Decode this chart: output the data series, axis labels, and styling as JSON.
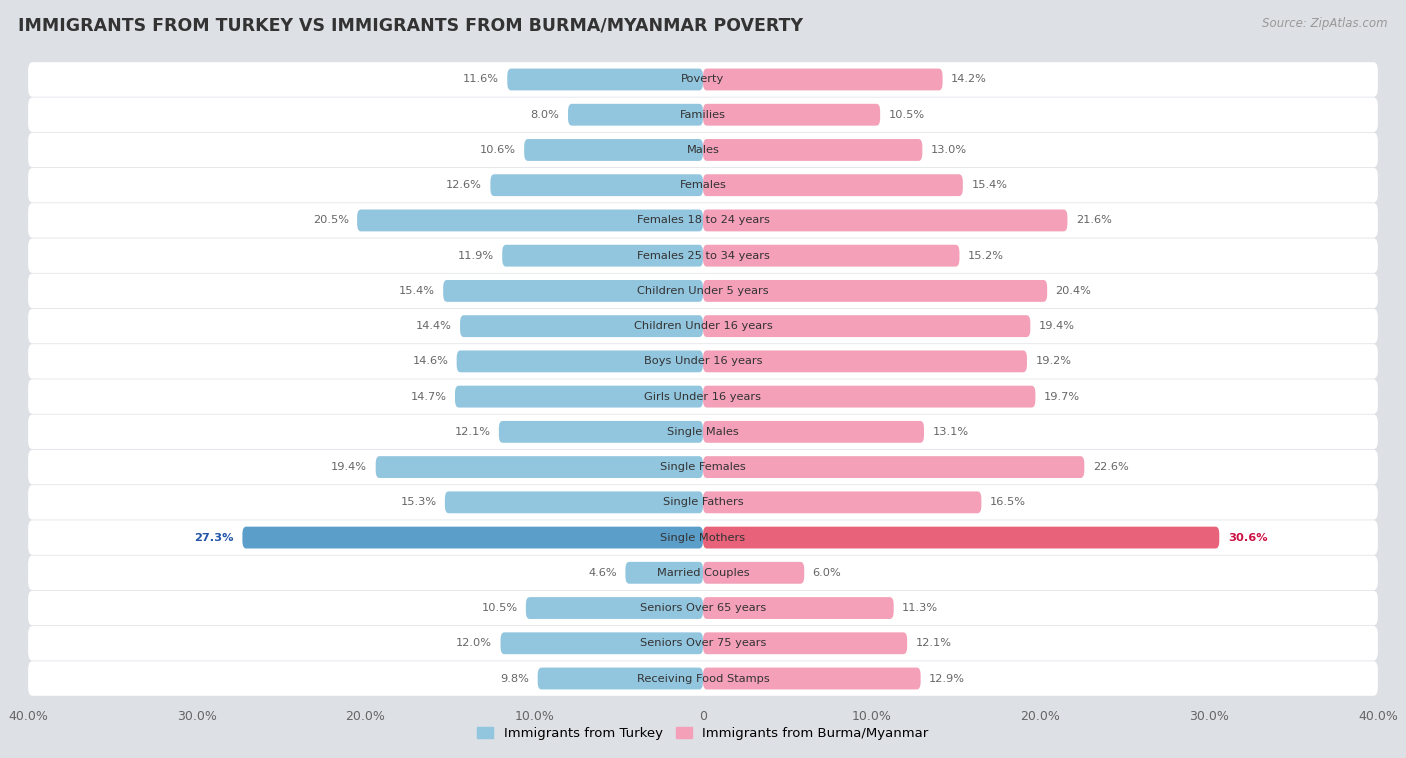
{
  "title": "IMMIGRANTS FROM TURKEY VS IMMIGRANTS FROM BURMA/MYANMAR POVERTY",
  "source": "Source: ZipAtlas.com",
  "categories": [
    "Poverty",
    "Families",
    "Males",
    "Females",
    "Females 18 to 24 years",
    "Females 25 to 34 years",
    "Children Under 5 years",
    "Children Under 16 years",
    "Boys Under 16 years",
    "Girls Under 16 years",
    "Single Males",
    "Single Females",
    "Single Fathers",
    "Single Mothers",
    "Married Couples",
    "Seniors Over 65 years",
    "Seniors Over 75 years",
    "Receiving Food Stamps"
  ],
  "turkey_values": [
    11.6,
    8.0,
    10.6,
    12.6,
    20.5,
    11.9,
    15.4,
    14.4,
    14.6,
    14.7,
    12.1,
    19.4,
    15.3,
    27.3,
    4.6,
    10.5,
    12.0,
    9.8
  ],
  "burma_values": [
    14.2,
    10.5,
    13.0,
    15.4,
    21.6,
    15.2,
    20.4,
    19.4,
    19.2,
    19.7,
    13.1,
    22.6,
    16.5,
    30.6,
    6.0,
    11.3,
    12.1,
    12.9
  ],
  "turkey_color": "#92c5de",
  "burma_color": "#f4a0b8",
  "turkey_label": "Immigrants from Turkey",
  "burma_label": "Immigrants from Burma/Myanmar",
  "single_mothers_turkey_color": "#5b9ec9",
  "single_mothers_burma_color": "#e8637a",
  "xlim": 40.0,
  "outer_bg": "#dde0e5",
  "row_bg": "#ffffff",
  "value_label_color": "#666666",
  "special_label_turkey": "#2255aa",
  "special_label_burma": "#cc1144"
}
